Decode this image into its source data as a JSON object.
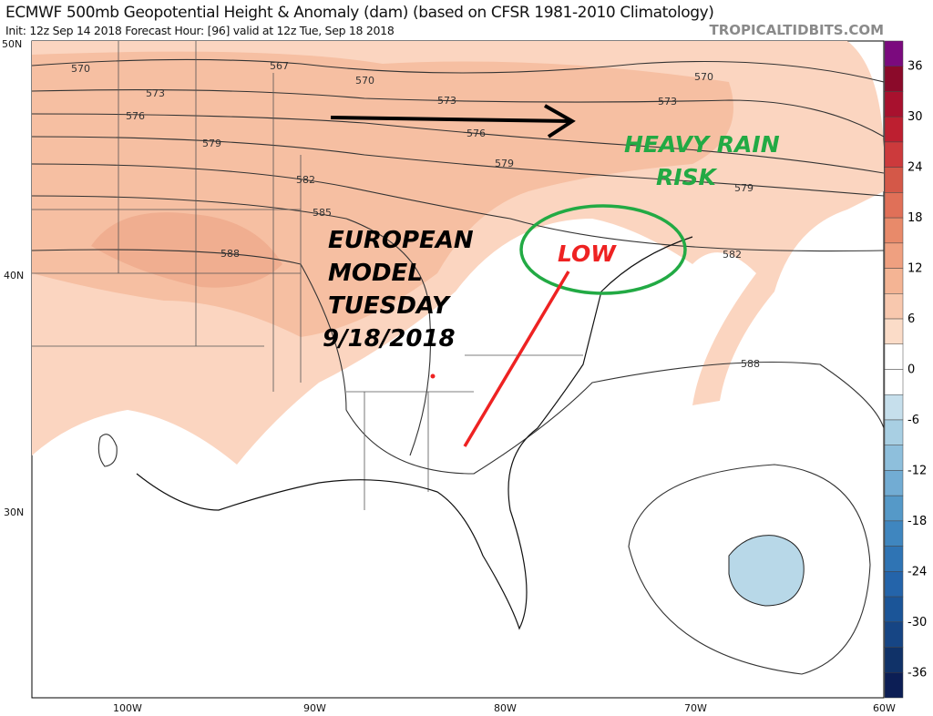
{
  "header": {
    "title": "ECMWF 500mb Geopotential Height & Anomaly (dam) (based on CFSR 1981-2010 Climatology)",
    "subtitle": "Init: 12z Sep 14 2018   Forecast Hour: [96]   valid at 12z Tue, Sep 18 2018",
    "brand": "TROPICALTIDBITS.COM"
  },
  "map": {
    "lat_labels": [
      "50N",
      "40N",
      "30N"
    ],
    "lon_labels": [
      "100W",
      "90W",
      "80W",
      "70W",
      "60W"
    ],
    "contour_labels": [
      "570",
      "567",
      "570",
      "573",
      "573",
      "573",
      "570",
      "576",
      "576",
      "579",
      "579",
      "579",
      "582",
      "582",
      "585",
      "588",
      "588"
    ],
    "annotations": {
      "model_text": [
        "EUROPEAN",
        "MODEL",
        "TUESDAY",
        "9/18/2018"
      ],
      "low": "LOW",
      "rain": [
        "HEAVY RAIN",
        "RISK"
      ]
    },
    "colors": {
      "positive_anomaly": "#f6c4a8",
      "strong_anomaly": "#efa888",
      "negative_anomaly": "#b8d8e8",
      "annotation_green": "#22aa44",
      "annotation_red": "#ee2222"
    }
  },
  "colorbar": {
    "labels": [
      "36",
      "30",
      "24",
      "18",
      "12",
      "6",
      "0",
      "-6",
      "-12",
      "-18",
      "-24",
      "-30",
      "-36"
    ],
    "colors": [
      "#7b0a7e",
      "#8b0a2a",
      "#a8112e",
      "#bd1f30",
      "#cc3a3c",
      "#d45848",
      "#e07058",
      "#e88a6a",
      "#efa080",
      "#f4b494",
      "#f8c8ae",
      "#fbdcc8",
      "#ffffff",
      "#ffffff",
      "#c6dfec",
      "#a8cfe3",
      "#8ebfdc",
      "#72acd3",
      "#5599c8",
      "#3f86bf",
      "#2f74b4",
      "#2464aa",
      "#1b5598",
      "#164584",
      "#103268",
      "#0c1e55"
    ]
  }
}
